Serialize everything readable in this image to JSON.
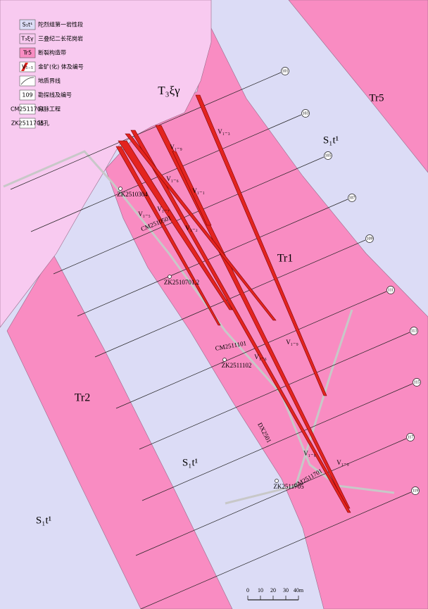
{
  "legend": [
    {
      "symbol": "S₁t¹",
      "label": "陀烈组第一岩性段"
    },
    {
      "symbol": "T₃ξγ",
      "label": "三叠纪二长花岗岩"
    },
    {
      "symbol": "Tr5",
      "label": "断裂构造带"
    },
    {
      "symbol": "V₁₋₁",
      "label": "金矿(化) 体及编号"
    },
    {
      "label": "地质界线"
    },
    {
      "symbol": "109",
      "label": "勘探线及编号"
    },
    {
      "symbol": "CM2511701",
      "label": "穿脉工程"
    },
    {
      "symbol": "ZK2511705",
      "label": "钻孔"
    }
  ],
  "map_labels": [
    "T₃ξγ",
    "Tr5",
    "S₁t¹",
    "Tr1",
    "Tr2",
    "S₁t¹",
    "S₁t¹",
    "V₁₋₃",
    "V₁₋₉",
    "V₁₋₆",
    "V₁₋₁",
    "V₁₋₅",
    "V₁₋₇",
    "V₁₋₂",
    "ZK2510304",
    "CM2510501",
    "ZK2510701.2",
    "V₁₋₉",
    "CM2511101",
    "ZK2511102",
    "V₁₋₆",
    "DX2501",
    "V₁₋₆",
    "CM2511701",
    "V₁₋₉",
    "ZK2511705"
  ],
  "exploration_lines": [
    "101",
    "103",
    "105",
    "107",
    "109",
    "111",
    "113",
    "115",
    "117",
    "119"
  ],
  "scale": {
    "labels": [
      "0",
      "10",
      "20",
      "30",
      "40m"
    ]
  }
}
